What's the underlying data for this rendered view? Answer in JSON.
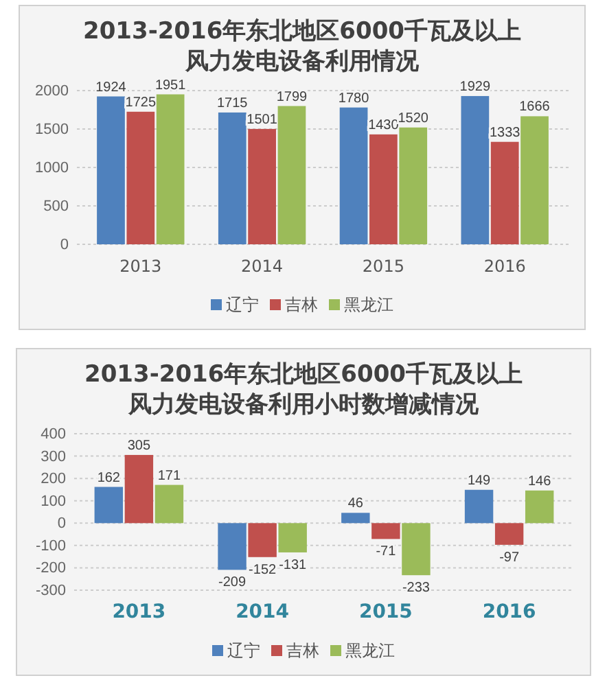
{
  "chart_data": [
    {
      "type": "bar",
      "title": "2013-2016年东北地区6000千瓦及以上风力发电设备利用情况",
      "categories": [
        "2013",
        "2014",
        "2015",
        "2016"
      ],
      "series": [
        {
          "name": "辽宁",
          "color": "#4f81bd",
          "values": [
            1924,
            1715,
            1780,
            1929
          ]
        },
        {
          "name": "吉林",
          "color": "#c0504d",
          "values": [
            1725,
            1501,
            1430,
            1333
          ]
        },
        {
          "name": "黑龙江",
          "color": "#9bbb59",
          "values": [
            1951,
            1799,
            1520,
            1666
          ]
        }
      ],
      "ylim": [
        0,
        2000
      ],
      "yticks": [
        0,
        500,
        1000,
        1500,
        2000
      ],
      "grid": "y",
      "legend": "bottom",
      "data_labels": true
    },
    {
      "type": "bar",
      "title": "2013-2016年东北地区6000千瓦及以上风力发电设备利用小时数增减情况",
      "categories": [
        "2013",
        "2014",
        "2015",
        "2016"
      ],
      "series": [
        {
          "name": "辽宁",
          "color": "#4f81bd",
          "values": [
            162,
            -209,
            46,
            149
          ]
        },
        {
          "name": "吉林",
          "color": "#c0504d",
          "values": [
            305,
            -152,
            -71,
            -97
          ]
        },
        {
          "name": "黑龙江",
          "color": "#9bbb59",
          "values": [
            171,
            -131,
            -233,
            146
          ]
        }
      ],
      "ylim": [
        -300,
        400
      ],
      "yticks": [
        -300,
        -200,
        -100,
        0,
        100,
        200,
        300,
        400
      ],
      "grid": "y",
      "legend": "bottom",
      "data_labels": true
    }
  ]
}
